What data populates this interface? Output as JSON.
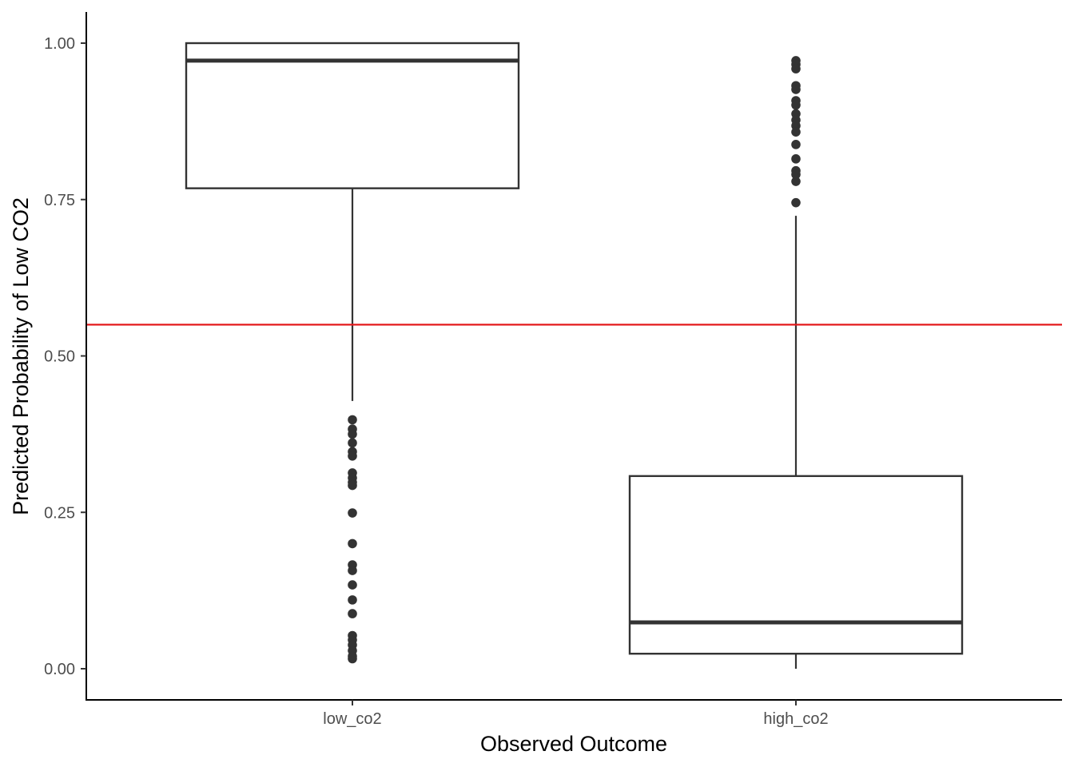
{
  "chart_data": {
    "type": "boxplot",
    "xlabel": "Observed Outcome",
    "ylabel": "Predicted Probability of Low CO2",
    "ylim": [
      -0.048,
      1.05
    ],
    "yticks": [
      0.0,
      0.25,
      0.5,
      0.75,
      1.0
    ],
    "ytick_labels": [
      "0.00",
      "0.25",
      "0.50",
      "0.75",
      "1.00"
    ],
    "categories": [
      "low_co2",
      "high_co2"
    ],
    "boxes": [
      {
        "category": "low_co2",
        "q1": 0.768,
        "median": 0.972,
        "q3": 1.0,
        "whisker_low": 0.428,
        "whisker_high": 1.0,
        "outliers": [
          0.398,
          0.383,
          0.375,
          0.361,
          0.347,
          0.34,
          0.313,
          0.305,
          0.298,
          0.293,
          0.249,
          0.2,
          0.166,
          0.157,
          0.134,
          0.11,
          0.088,
          0.053,
          0.046,
          0.038,
          0.029,
          0.02,
          0.016
        ]
      },
      {
        "category": "high_co2",
        "q1": 0.024,
        "median": 0.074,
        "q3": 0.308,
        "whisker_low": 0.0,
        "whisker_high": 0.724,
        "outliers": [
          0.972,
          0.966,
          0.959,
          0.932,
          0.926,
          0.908,
          0.901,
          0.887,
          0.877,
          0.868,
          0.858,
          0.838,
          0.815,
          0.796,
          0.79,
          0.779,
          0.745
        ]
      }
    ],
    "reference_line": {
      "y": 0.55,
      "color": "#e41a1c"
    },
    "colors": {
      "box_stroke": "#333333",
      "outlier": "#333333",
      "axis": "#000000",
      "tick_text": "#4d4d4d"
    },
    "grid": false,
    "legend": "none"
  }
}
